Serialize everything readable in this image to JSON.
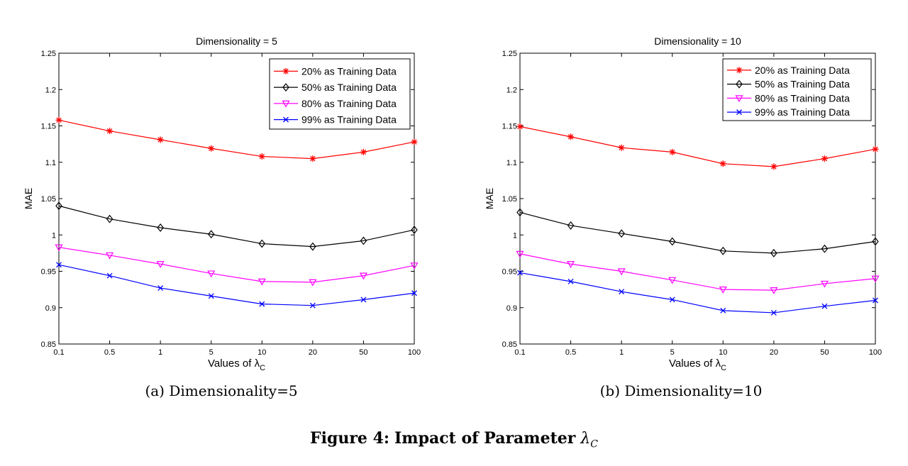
{
  "figure": {
    "caption_label": "Figure 4:",
    "caption_text": "Impact of Parameter",
    "caption_symbol": "λ",
    "caption_subscript": "C"
  },
  "chart_data": [
    {
      "type": "line",
      "title": "Dimensionality = 5",
      "subcaption": "(a) Dimensionality=5",
      "xlabel": "Values of λ",
      "xlabel_subscript": "C",
      "ylabel": "MAE",
      "categories": [
        "0.1",
        "0.5",
        "1",
        "5",
        "10",
        "20",
        "50",
        "100"
      ],
      "ylim": [
        0.85,
        1.25
      ],
      "yticks": [
        "0.85",
        "0.9",
        "0.95",
        "1",
        "1.05",
        "1.1",
        "1.15",
        "1.2",
        "1.25"
      ],
      "legend_position": "top-right",
      "series": [
        {
          "name": "20% as Training Data",
          "color": "#ff0000",
          "marker": "star",
          "values": [
            1.158,
            1.143,
            1.131,
            1.119,
            1.108,
            1.105,
            1.114,
            1.128
          ]
        },
        {
          "name": "50% as Training Data",
          "color": "#000000",
          "marker": "diamond",
          "values": [
            1.04,
            1.022,
            1.01,
            1.001,
            0.988,
            0.984,
            0.992,
            1.007
          ]
        },
        {
          "name": "80% as Training Data",
          "color": "#ff00ff",
          "marker": "triangle-down",
          "values": [
            0.983,
            0.972,
            0.96,
            0.947,
            0.936,
            0.935,
            0.944,
            0.958
          ]
        },
        {
          "name": "99% as Training Data",
          "color": "#0000ff",
          "marker": "x",
          "values": [
            0.959,
            0.944,
            0.927,
            0.916,
            0.905,
            0.903,
            0.911,
            0.92
          ]
        }
      ]
    },
    {
      "type": "line",
      "title": "Dimensionality = 10",
      "subcaption": "(b) Dimensionality=10",
      "xlabel": "Values of λ",
      "xlabel_subscript": "C",
      "ylabel": "MAE",
      "categories": [
        "0.1",
        "0.5",
        "1",
        "5",
        "10",
        "20",
        "50",
        "100"
      ],
      "ylim": [
        0.85,
        1.25
      ],
      "yticks": [
        "0.85",
        "0.9",
        "0.95",
        "1",
        "1.05",
        "1.1",
        "1.15",
        "1.2",
        "1.25"
      ],
      "legend_position": "top-right",
      "series": [
        {
          "name": "20% as Training Data",
          "color": "#ff0000",
          "marker": "star",
          "values": [
            1.149,
            1.135,
            1.12,
            1.114,
            1.098,
            1.094,
            1.105,
            1.118
          ]
        },
        {
          "name": "50% as Training Data",
          "color": "#000000",
          "marker": "diamond",
          "values": [
            1.031,
            1.013,
            1.002,
            0.991,
            0.978,
            0.975,
            0.981,
            0.991
          ]
        },
        {
          "name": "80% as Training Data",
          "color": "#ff00ff",
          "marker": "triangle-down",
          "values": [
            0.974,
            0.96,
            0.95,
            0.938,
            0.925,
            0.924,
            0.933,
            0.94
          ]
        },
        {
          "name": "99% as Training Data",
          "color": "#0000ff",
          "marker": "x",
          "values": [
            0.948,
            0.936,
            0.922,
            0.911,
            0.896,
            0.893,
            0.902,
            0.91
          ]
        }
      ]
    }
  ]
}
